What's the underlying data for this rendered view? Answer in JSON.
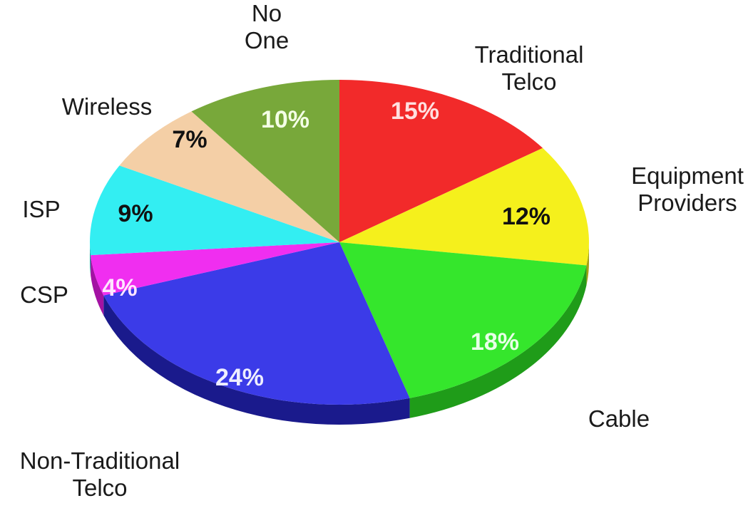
{
  "chart_data": {
    "type": "pie",
    "title": "",
    "slices": [
      {
        "label": [
          "Traditional",
          "Telco"
        ],
        "value": 15,
        "value_label": "15%",
        "color": "#f22a2a",
        "side": "#a61414",
        "text_color": "#ffe0e0"
      },
      {
        "label": [
          "Equipment",
          "Providers"
        ],
        "value": 12,
        "value_label": "12%",
        "color": "#f5f01c",
        "side": "#a3a012",
        "text_color": "#111111"
      },
      {
        "label": [
          "Cable"
        ],
        "value": 18,
        "value_label": "18%",
        "color": "#35e62c",
        "side": "#1f9c19",
        "text_color": "#e8ffe8"
      },
      {
        "label": [
          "Non-Traditional",
          "Telco"
        ],
        "value": 24,
        "value_label": "24%",
        "color": "#3b3be8",
        "side": "#1a1a8c",
        "text_color": "#eeeeff"
      },
      {
        "label": [
          "CSP"
        ],
        "value": 4,
        "value_label": "4%",
        "color": "#f02ef0",
        "side": "#a312a3",
        "text_color": "#ffe6ff"
      },
      {
        "label": [
          "ISP"
        ],
        "value": 9,
        "value_label": "9%",
        "color": "#33eef2",
        "side": "#1a9a9d",
        "text_color": "#111111"
      },
      {
        "label": [
          "Wireless"
        ],
        "value": 7,
        "value_label": "7%",
        "color": "#f4cfa6",
        "side": "#b08c63",
        "text_color": "#111111"
      },
      {
        "label": [
          "No",
          "One"
        ],
        "value": 10,
        "value_label": "10%",
        "color": "#78a83a",
        "side": "#4c6e22",
        "text_color": "#f4ffe6"
      }
    ]
  }
}
